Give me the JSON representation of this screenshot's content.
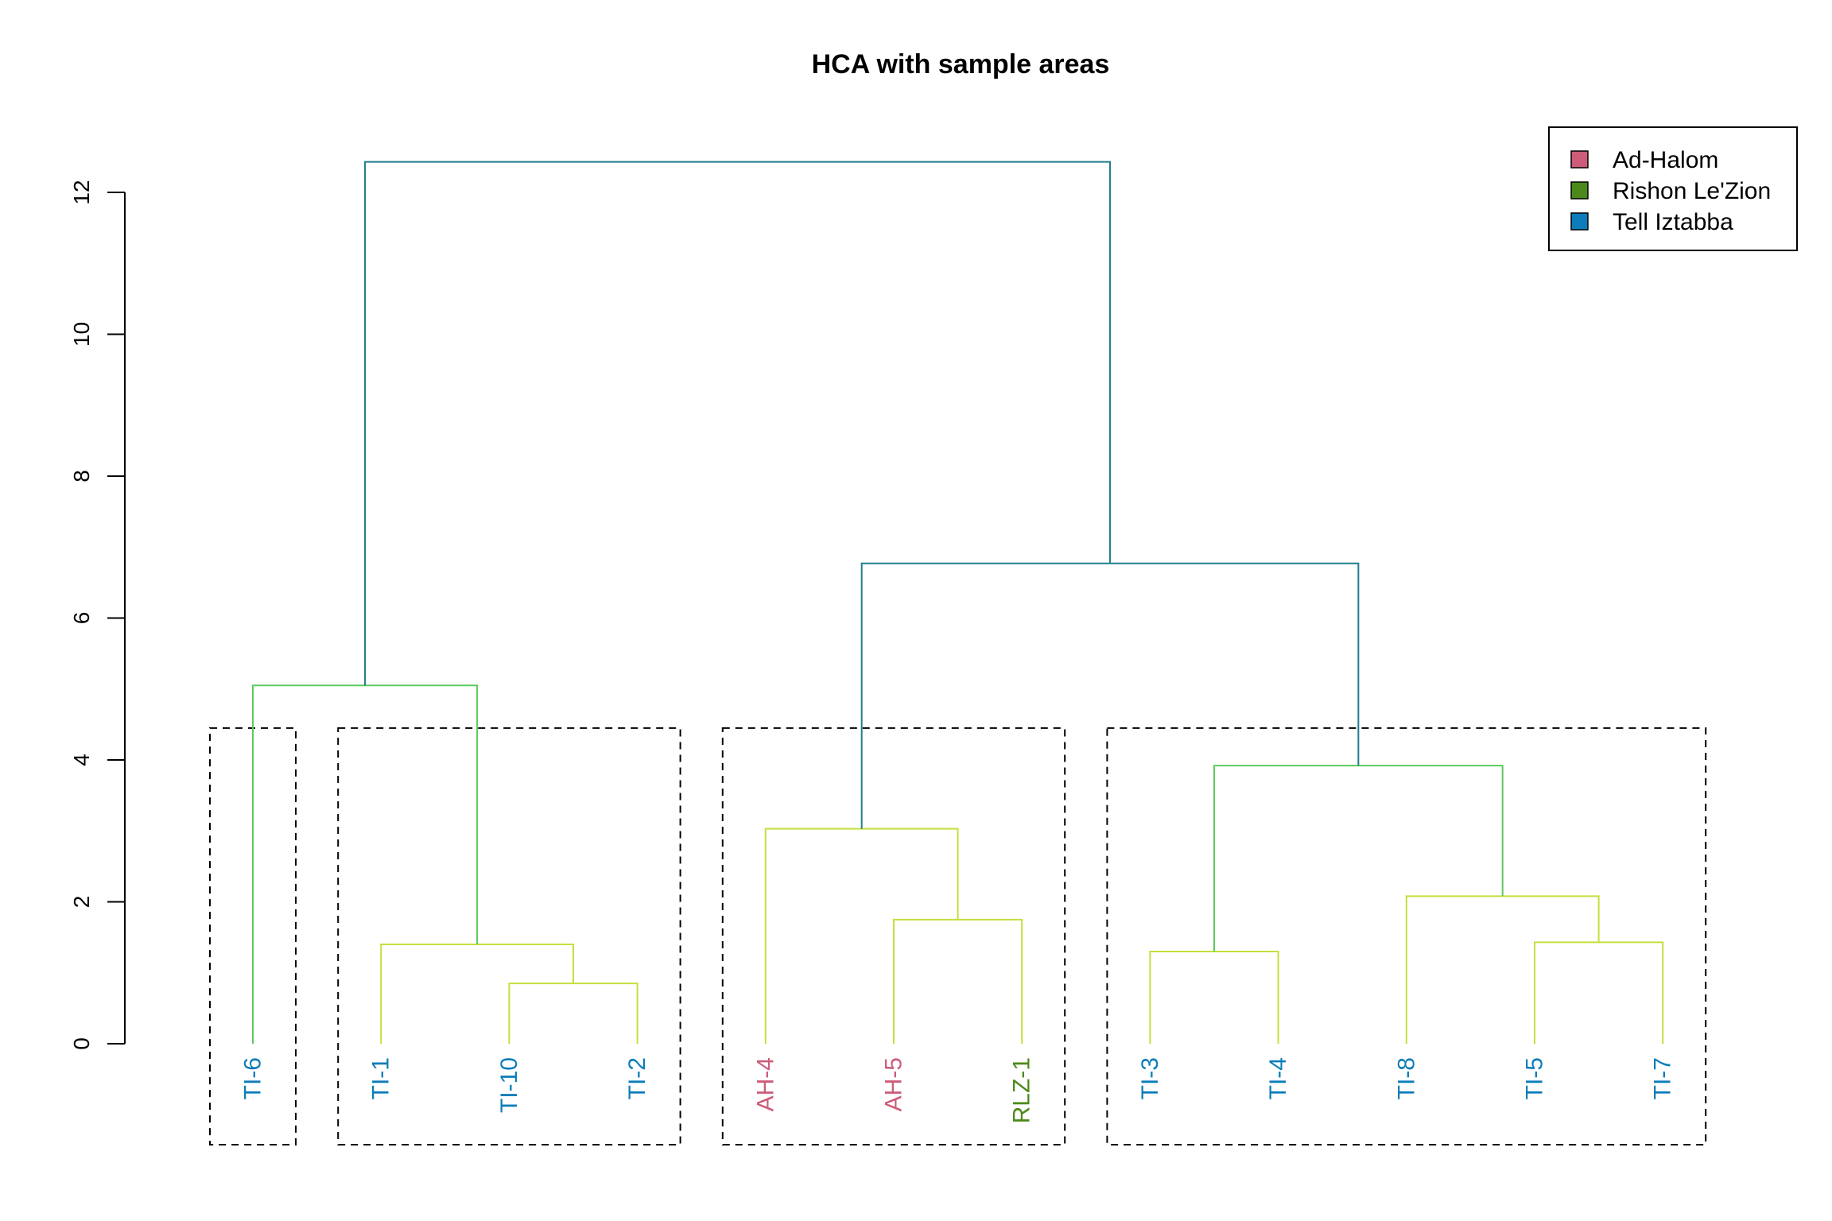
{
  "chart_data": {
    "type": "dendrogram",
    "title": "HCA with sample areas",
    "xlabel": "",
    "ylabel": "",
    "ylim": [
      0,
      12
    ],
    "y_ticks": [
      0,
      2,
      4,
      6,
      8,
      10,
      12
    ],
    "grid": false,
    "leaves": [
      {
        "label": "TI-6",
        "group": "Tell Iztabba"
      },
      {
        "label": "TI-1",
        "group": "Tell Iztabba"
      },
      {
        "label": "TI-10",
        "group": "Tell Iztabba"
      },
      {
        "label": "TI-2",
        "group": "Tell Iztabba"
      },
      {
        "label": "AH-4",
        "group": "Ad-Halom"
      },
      {
        "label": "AH-5",
        "group": "Ad-Halom"
      },
      {
        "label": "RLZ-1",
        "group": "Rishon Le'Zion"
      },
      {
        "label": "TI-3",
        "group": "Tell Iztabba"
      },
      {
        "label": "TI-4",
        "group": "Tell Iztabba"
      },
      {
        "label": "TI-8",
        "group": "Tell Iztabba"
      },
      {
        "label": "TI-5",
        "group": "Tell Iztabba"
      },
      {
        "label": "TI-7",
        "group": "Tell Iztabba"
      }
    ],
    "merges": [
      {
        "id": "m1",
        "left": "TI-10",
        "right": "TI-2",
        "height": 0.85
      },
      {
        "id": "m2",
        "left": "TI-1",
        "right": "m1",
        "height": 1.4
      },
      {
        "id": "m3",
        "left": "TI-6",
        "right": "m2",
        "height": 5.05
      },
      {
        "id": "m4",
        "left": "AH-5",
        "right": "RLZ-1",
        "height": 1.75
      },
      {
        "id": "m5",
        "left": "AH-4",
        "right": "m4",
        "height": 3.03
      },
      {
        "id": "m6",
        "left": "TI-3",
        "right": "TI-4",
        "height": 1.3
      },
      {
        "id": "m7",
        "left": "TI-5",
        "right": "TI-7",
        "height": 1.43
      },
      {
        "id": "m8",
        "left": "TI-8",
        "right": "m7",
        "height": 2.08
      },
      {
        "id": "m9",
        "left": "m6",
        "right": "m8",
        "height": 3.92
      },
      {
        "id": "m10",
        "left": "m5",
        "right": "m9",
        "height": 6.77
      },
      {
        "id": "m11",
        "left": "m3",
        "right": "m10",
        "height": 12.43
      }
    ],
    "clusters": [
      [
        "TI-6"
      ],
      [
        "TI-1",
        "TI-10",
        "TI-2"
      ],
      [
        "AH-4",
        "AH-5",
        "RLZ-1"
      ],
      [
        "TI-3",
        "TI-4",
        "TI-8",
        "TI-5",
        "TI-7"
      ]
    ],
    "cluster_box_top": 4.45,
    "legend": {
      "position": "top-right",
      "entries": [
        {
          "label": "Ad-Halom",
          "color": "#CC5C79"
        },
        {
          "label": "Rishon Le'Zion",
          "color": "#4B8A1A"
        },
        {
          "label": "Tell Iztabba",
          "color": "#0C7DBA"
        }
      ]
    },
    "colors": {
      "low": "#C5DF3C",
      "mid": "#5CC95F",
      "high": "#1E7F8A",
      "box": "#000000"
    }
  }
}
